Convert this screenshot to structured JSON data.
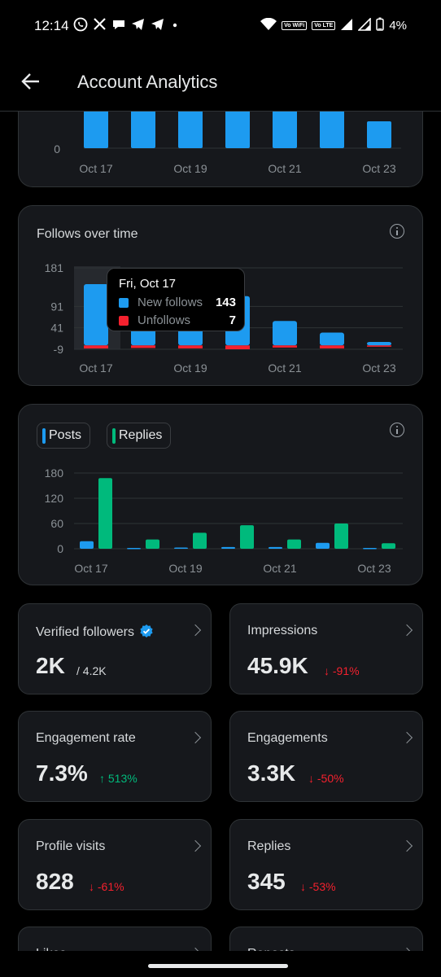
{
  "status_bar": {
    "time": "12:14",
    "app_icons": [
      "whatsapp-icon",
      "x-icon",
      "chat-icon",
      "telegram-icon",
      "telegram-icon",
      "dot-icon"
    ],
    "chip_vowifi": "Vo WiFi",
    "chip_volte": "Vo LTE",
    "battery": "4%"
  },
  "header": {
    "title": "Account Analytics"
  },
  "colors": {
    "blue": "#1d9bf0",
    "red": "#f4212e",
    "green": "#00ba7c",
    "card_bg": "#16181c"
  },
  "chart_top": {
    "ytick_zero": "0",
    "x_labels": [
      "Oct 17",
      "Oct 19",
      "Oct 21",
      "Oct 23"
    ]
  },
  "follows_chart": {
    "title": "Follows over time",
    "yticks": [
      "181",
      "91",
      "41",
      "-9"
    ],
    "x_labels": [
      "Oct 17",
      "Oct 19",
      "Oct 21",
      "Oct 23"
    ],
    "tooltip": {
      "date": "Fri, Oct 17",
      "new_label": "New follows",
      "new_value": "143",
      "unf_label": "Unfollows",
      "unf_value": "7"
    }
  },
  "posts_chart": {
    "legend_posts": "Posts",
    "legend_replies": "Replies",
    "yticks": [
      "180",
      "120",
      "60",
      "0"
    ],
    "x_labels": [
      "Oct 17",
      "Oct 19",
      "Oct 21",
      "Oct 23"
    ]
  },
  "chart_data": [
    {
      "type": "bar",
      "title": "Follows over time",
      "categories": [
        "Oct 17",
        "Oct 18",
        "Oct 19",
        "Oct 20",
        "Oct 21",
        "Oct 22",
        "Oct 23"
      ],
      "series": [
        {
          "name": "New follows",
          "values": [
            143,
            181,
            120,
            115,
            57,
            30,
            8
          ]
        },
        {
          "name": "Unfollows",
          "values": [
            7,
            6,
            7,
            9,
            5,
            7,
            3
          ]
        }
      ],
      "ylim": [
        -9,
        181
      ]
    },
    {
      "type": "bar",
      "categories": [
        "Oct 17",
        "Oct 18",
        "Oct 19",
        "Oct 20",
        "Oct 21",
        "Oct 22",
        "Oct 23"
      ],
      "series": [
        {
          "name": "Posts",
          "values": [
            18,
            2,
            3,
            4,
            4,
            14,
            2
          ]
        },
        {
          "name": "Replies",
          "values": [
            168,
            22,
            38,
            56,
            22,
            60,
            13
          ]
        }
      ],
      "ylim": [
        0,
        180
      ]
    }
  ],
  "metrics": [
    {
      "label": "Verified followers",
      "value": "2K",
      "sub": "/ 4.2K"
    },
    {
      "label": "Impressions",
      "value": "45.9K",
      "delta": "↓ -91%"
    },
    {
      "label": "Engagement rate",
      "value": "7.3%",
      "delta": "↑ 513%"
    },
    {
      "label": "Engagements",
      "value": "3.3K",
      "delta": "↓ -50%"
    },
    {
      "label": "Profile visits",
      "value": "828",
      "delta": "↓ -61%"
    },
    {
      "label": "Replies",
      "value": "345",
      "delta": "↓ -53%"
    },
    {
      "label": "Likes"
    },
    {
      "label": "Reposts"
    }
  ]
}
